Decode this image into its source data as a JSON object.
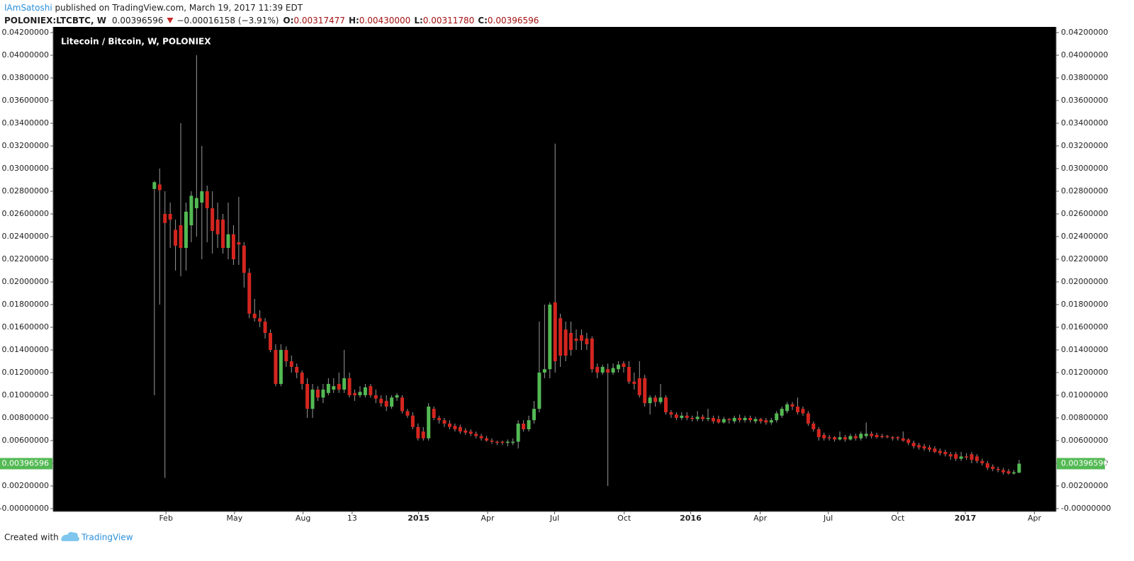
{
  "header": {
    "author": "IAmSatoshi",
    "published": " published on TradingView.com, March 19, 2017 11:39 EDT",
    "symbol": "POLONIEX:LTCBTC, W",
    "last": "0.00396596",
    "change": "−0.00016158 (−3.91%)",
    "open_label": "O:",
    "open": "0.00317477",
    "high_label": "H:",
    "high": "0.00430000",
    "low_label": "L:",
    "low": "0.00311780",
    "close_label": "C:",
    "close": "0.00396596"
  },
  "chart_data": {
    "type": "candlestick",
    "title": "Litecoin / Bitcoin, W, POLONIEX",
    "up_color": "#53b953",
    "down_color": "#d3261f",
    "wick_color": "#9a9a9a",
    "price_label": "0.00396596",
    "xlim": [
      -19.2,
      171.0
    ],
    "xticks": [
      {
        "value": 2.2,
        "label": "Feb"
      },
      {
        "value": 15.2,
        "label": "May"
      },
      {
        "value": 28.2,
        "label": "Aug"
      },
      {
        "value": 37.5,
        "label": "13"
      },
      {
        "value": 50.1,
        "label": "2015"
      },
      {
        "value": 63.2,
        "label": "Apr"
      },
      {
        "value": 75.9,
        "label": "Jul"
      },
      {
        "value": 89.1,
        "label": "Oct"
      },
      {
        "value": 101.7,
        "label": "2016"
      },
      {
        "value": 114.9,
        "label": "Apr"
      },
      {
        "value": 127.8,
        "label": "Jul"
      },
      {
        "value": 141.0,
        "label": "Oct"
      },
      {
        "value": 153.8,
        "label": "2017"
      },
      {
        "value": 166.9,
        "label": "Apr"
      }
    ],
    "ylim": [
      -0.000375,
      0.044375
    ],
    "yticks": [
      {
        "value": 0,
        "label": "-0.00000000"
      },
      {
        "value": 0.002,
        "label": "0.00200000"
      },
      {
        "value": 0.004,
        "label": "0.00400000"
      },
      {
        "value": 0.006,
        "label": "0.00600000"
      },
      {
        "value": 0.008,
        "label": "0.00800000"
      },
      {
        "value": 0.01,
        "label": "0.01000000"
      },
      {
        "value": 0.012,
        "label": "0.01200000"
      },
      {
        "value": 0.014,
        "label": "0.01400000"
      },
      {
        "value": 0.016,
        "label": "0.01600000"
      },
      {
        "value": 0.018,
        "label": "0.01800000"
      },
      {
        "value": 0.02,
        "label": "0.02000000"
      },
      {
        "value": 0.022,
        "label": "0.02200000"
      },
      {
        "value": 0.024,
        "label": "0.02400000"
      },
      {
        "value": 0.026,
        "label": "0.02600000"
      },
      {
        "value": 0.028,
        "label": "0.02800000"
      },
      {
        "value": 0.03,
        "label": "0.03000000"
      },
      {
        "value": 0.032,
        "label": "0.03200000"
      },
      {
        "value": 0.034,
        "label": "0.03400000"
      },
      {
        "value": 0.036,
        "label": "0.03600000"
      },
      {
        "value": 0.038,
        "label": "0.03800000"
      },
      {
        "value": 0.04,
        "label": "0.04000000"
      },
      {
        "value": 0.042,
        "label": "0.04200000"
      }
    ],
    "ohlc": [
      [
        0.0282,
        0.0289,
        0.01,
        0.0288
      ],
      [
        0.0286,
        0.03,
        0.018,
        0.0281
      ],
      [
        0.026,
        0.028,
        0.0027,
        0.0252
      ],
      [
        0.026,
        0.027,
        0.023,
        0.0255
      ],
      [
        0.0246,
        0.0255,
        0.021,
        0.0232
      ],
      [
        0.025,
        0.034,
        0.0205,
        0.023
      ],
      [
        0.023,
        0.027,
        0.021,
        0.0262
      ],
      [
        0.025,
        0.028,
        0.0235,
        0.0276
      ],
      [
        0.0265,
        0.04,
        0.024,
        0.0274
      ],
      [
        0.027,
        0.032,
        0.022,
        0.028
      ],
      [
        0.028,
        0.0285,
        0.0235,
        0.0265
      ],
      [
        0.0265,
        0.028,
        0.0225,
        0.0245
      ],
      [
        0.0255,
        0.027,
        0.023,
        0.0242
      ],
      [
        0.0255,
        0.026,
        0.0225,
        0.023
      ],
      [
        0.023,
        0.027,
        0.022,
        0.0242
      ],
      [
        0.0242,
        0.025,
        0.0215,
        0.022
      ],
      [
        0.0235,
        0.0275,
        0.0215,
        0.0233
      ],
      [
        0.0232,
        0.0235,
        0.0195,
        0.0208
      ],
      [
        0.0208,
        0.0212,
        0.0168,
        0.0172
      ],
      [
        0.0172,
        0.0185,
        0.0165,
        0.0168
      ],
      [
        0.0168,
        0.0175,
        0.016,
        0.0165
      ],
      [
        0.0165,
        0.0168,
        0.015,
        0.0155
      ],
      [
        0.0155,
        0.0158,
        0.0138,
        0.014
      ],
      [
        0.014,
        0.0145,
        0.0108,
        0.011
      ],
      [
        0.011,
        0.0145,
        0.0108,
        0.014
      ],
      [
        0.014,
        0.0143,
        0.0125,
        0.013
      ],
      [
        0.013,
        0.0135,
        0.012,
        0.0125
      ],
      [
        0.0125,
        0.0128,
        0.0115,
        0.012
      ],
      [
        0.012,
        0.0122,
        0.0105,
        0.011
      ],
      [
        0.011,
        0.0115,
        0.008,
        0.0088
      ],
      [
        0.0088,
        0.011,
        0.008,
        0.0105
      ],
      [
        0.0105,
        0.0108,
        0.0095,
        0.0098
      ],
      [
        0.0098,
        0.011,
        0.0093,
        0.0105
      ],
      [
        0.0102,
        0.0115,
        0.01,
        0.011
      ],
      [
        0.0105,
        0.0115,
        0.0102,
        0.0108
      ],
      [
        0.011,
        0.012,
        0.0102,
        0.0105
      ],
      [
        0.0105,
        0.014,
        0.0102,
        0.0115
      ],
      [
        0.0115,
        0.012,
        0.0098,
        0.01
      ],
      [
        0.0102,
        0.0105,
        0.0095,
        0.01
      ],
      [
        0.01,
        0.0108,
        0.0098,
        0.0103
      ],
      [
        0.01,
        0.011,
        0.0098,
        0.0107
      ],
      [
        0.0108,
        0.011,
        0.0098,
        0.01
      ],
      [
        0.01,
        0.0105,
        0.0093,
        0.0097
      ],
      [
        0.0097,
        0.01,
        0.009,
        0.0093
      ],
      [
        0.0095,
        0.01,
        0.0086,
        0.009
      ],
      [
        0.009,
        0.01,
        0.0088,
        0.0098
      ],
      [
        0.0098,
        0.0102,
        0.0095,
        0.01
      ],
      [
        0.0098,
        0.01,
        0.0084,
        0.0086
      ],
      [
        0.0086,
        0.0088,
        0.008,
        0.0082
      ],
      [
        0.0082,
        0.0085,
        0.007,
        0.0072
      ],
      [
        0.0072,
        0.0075,
        0.006,
        0.0062
      ],
      [
        0.0068,
        0.0072,
        0.006,
        0.0062
      ],
      [
        0.0062,
        0.0093,
        0.006,
        0.009
      ],
      [
        0.0088,
        0.009,
        0.0078,
        0.008
      ],
      [
        0.008,
        0.0082,
        0.0075,
        0.0078
      ],
      [
        0.0078,
        0.008,
        0.0072,
        0.0075
      ],
      [
        0.0075,
        0.0078,
        0.007,
        0.0072
      ],
      [
        0.0073,
        0.0075,
        0.0068,
        0.007
      ],
      [
        0.0072,
        0.0074,
        0.0066,
        0.0068
      ],
      [
        0.0069,
        0.0071,
        0.0065,
        0.0067
      ],
      [
        0.0068,
        0.007,
        0.0064,
        0.0066
      ],
      [
        0.0066,
        0.0068,
        0.0062,
        0.0064
      ],
      [
        0.0064,
        0.0066,
        0.006,
        0.0062
      ],
      [
        0.0062,
        0.0064,
        0.0059,
        0.006
      ],
      [
        0.006,
        0.0062,
        0.0057,
        0.0059
      ],
      [
        0.0059,
        0.006,
        0.0056,
        0.0058
      ],
      [
        0.0059,
        0.006,
        0.0056,
        0.0058
      ],
      [
        0.0058,
        0.0061,
        0.0055,
        0.0059
      ],
      [
        0.0058,
        0.0062,
        0.0056,
        0.0059
      ],
      [
        0.0059,
        0.0078,
        0.0053,
        0.0075
      ],
      [
        0.0075,
        0.0078,
        0.0068,
        0.007
      ],
      [
        0.007,
        0.0082,
        0.0068,
        0.0078
      ],
      [
        0.0078,
        0.0095,
        0.0075,
        0.0088
      ],
      [
        0.0088,
        0.0165,
        0.0085,
        0.012
      ],
      [
        0.012,
        0.018,
        0.0115,
        0.0123
      ],
      [
        0.0123,
        0.0182,
        0.0115,
        0.018
      ],
      [
        0.0182,
        0.0322,
        0.012,
        0.013
      ],
      [
        0.0168,
        0.0172,
        0.0125,
        0.0135
      ],
      [
        0.0158,
        0.0165,
        0.013,
        0.0135
      ],
      [
        0.0155,
        0.0165,
        0.0135,
        0.014
      ],
      [
        0.015,
        0.0158,
        0.014,
        0.0148
      ],
      [
        0.0153,
        0.0158,
        0.014,
        0.0148
      ],
      [
        0.015,
        0.0155,
        0.014,
        0.0145
      ],
      [
        0.015,
        0.0152,
        0.012,
        0.0123
      ],
      [
        0.0125,
        0.0128,
        0.0115,
        0.012
      ],
      [
        0.012,
        0.0127,
        0.0118,
        0.0125
      ],
      [
        0.0123,
        0.0128,
        0.002,
        0.012
      ],
      [
        0.012,
        0.0128,
        0.0118,
        0.0124
      ],
      [
        0.0123,
        0.013,
        0.012,
        0.0127
      ],
      [
        0.0128,
        0.013,
        0.012,
        0.0125
      ],
      [
        0.0125,
        0.013,
        0.011,
        0.0112
      ],
      [
        0.0112,
        0.012,
        0.0105,
        0.011
      ],
      [
        0.0115,
        0.013,
        0.0098,
        0.01
      ],
      [
        0.0115,
        0.0118,
        0.009,
        0.0093
      ],
      [
        0.0093,
        0.01,
        0.0083,
        0.0098
      ],
      [
        0.0098,
        0.01,
        0.009,
        0.0094
      ],
      [
        0.0094,
        0.011,
        0.0092,
        0.0098
      ],
      [
        0.0098,
        0.01,
        0.0083,
        0.0085
      ],
      [
        0.0085,
        0.0087,
        0.008,
        0.0083
      ],
      [
        0.0083,
        0.0085,
        0.0078,
        0.008
      ],
      [
        0.008,
        0.0085,
        0.0078,
        0.0082
      ],
      [
        0.0082,
        0.0085,
        0.0078,
        0.008
      ],
      [
        0.008,
        0.0082,
        0.0077,
        0.0079
      ],
      [
        0.0079,
        0.0086,
        0.0077,
        0.0081
      ],
      [
        0.0081,
        0.0083,
        0.0077,
        0.0079
      ],
      [
        0.0079,
        0.0088,
        0.0077,
        0.008
      ],
      [
        0.008,
        0.0082,
        0.0075,
        0.0077
      ],
      [
        0.0079,
        0.0082,
        0.0075,
        0.0076
      ],
      [
        0.0076,
        0.0081,
        0.0075,
        0.0079
      ],
      [
        0.0079,
        0.008,
        0.0075,
        0.0078
      ],
      [
        0.0077,
        0.0082,
        0.0075,
        0.008
      ],
      [
        0.008,
        0.0083,
        0.0076,
        0.0078
      ],
      [
        0.0078,
        0.0082,
        0.0076,
        0.008
      ],
      [
        0.008,
        0.0082,
        0.0076,
        0.0078
      ],
      [
        0.0077,
        0.0081,
        0.0075,
        0.0079
      ],
      [
        0.0079,
        0.008,
        0.0075,
        0.0077
      ],
      [
        0.0078,
        0.008,
        0.0074,
        0.0076
      ],
      [
        0.0076,
        0.008,
        0.0074,
        0.0078
      ],
      [
        0.0078,
        0.0086,
        0.0076,
        0.0084
      ],
      [
        0.0082,
        0.009,
        0.008,
        0.0088
      ],
      [
        0.0086,
        0.0094,
        0.0084,
        0.0092
      ],
      [
        0.0092,
        0.0094,
        0.0087,
        0.009
      ],
      [
        0.009,
        0.0098,
        0.0083,
        0.0085
      ],
      [
        0.0088,
        0.009,
        0.0082,
        0.0084
      ],
      [
        0.0084,
        0.0086,
        0.0073,
        0.0075
      ],
      [
        0.0075,
        0.0077,
        0.0068,
        0.007
      ],
      [
        0.007,
        0.0072,
        0.006,
        0.0063
      ],
      [
        0.0065,
        0.0067,
        0.006,
        0.0062
      ],
      [
        0.0063,
        0.0065,
        0.006,
        0.0062
      ],
      [
        0.0063,
        0.0064,
        0.0059,
        0.0061
      ],
      [
        0.0061,
        0.0068,
        0.006,
        0.0063
      ],
      [
        0.0063,
        0.0065,
        0.0059,
        0.0061
      ],
      [
        0.0061,
        0.0066,
        0.006,
        0.0064
      ],
      [
        0.0064,
        0.0066,
        0.006,
        0.0062
      ],
      [
        0.0062,
        0.0068,
        0.006,
        0.0066
      ],
      [
        0.0064,
        0.0076,
        0.0062,
        0.0066
      ],
      [
        0.0066,
        0.0068,
        0.0062,
        0.0064
      ],
      [
        0.0065,
        0.0067,
        0.0062,
        0.0063
      ],
      [
        0.0064,
        0.0066,
        0.0062,
        0.0063
      ],
      [
        0.0064,
        0.0065,
        0.0062,
        0.0063
      ],
      [
        0.0063,
        0.0064,
        0.006,
        0.0062
      ],
      [
        0.0063,
        0.0064,
        0.006,
        0.0062
      ],
      [
        0.0062,
        0.0068,
        0.0059,
        0.006
      ],
      [
        0.0061,
        0.0062,
        0.0056,
        0.0058
      ],
      [
        0.0058,
        0.006,
        0.0053,
        0.0055
      ],
      [
        0.0056,
        0.0058,
        0.0052,
        0.0054
      ],
      [
        0.0055,
        0.0057,
        0.0051,
        0.0053
      ],
      [
        0.0054,
        0.0056,
        0.005,
        0.0052
      ],
      [
        0.0053,
        0.0055,
        0.0049,
        0.005
      ],
      [
        0.0051,
        0.0053,
        0.0047,
        0.0049
      ],
      [
        0.005,
        0.0052,
        0.0046,
        0.0048
      ],
      [
        0.0048,
        0.005,
        0.0043,
        0.0046
      ],
      [
        0.0048,
        0.005,
        0.0042,
        0.0044
      ],
      [
        0.0044,
        0.005,
        0.0042,
        0.0046
      ],
      [
        0.0046,
        0.0049,
        0.0043,
        0.0045
      ],
      [
        0.0048,
        0.005,
        0.004,
        0.0043
      ],
      [
        0.0046,
        0.0048,
        0.004,
        0.0042
      ],
      [
        0.0042,
        0.0044,
        0.0038,
        0.004
      ],
      [
        0.004,
        0.0042,
        0.0034,
        0.0036
      ],
      [
        0.0037,
        0.0039,
        0.0033,
        0.0035
      ],
      [
        0.0035,
        0.0037,
        0.0032,
        0.0034
      ],
      [
        0.0034,
        0.0036,
        0.003,
        0.0032
      ],
      [
        0.0033,
        0.0035,
        0.003,
        0.0031
      ],
      [
        0.0031,
        0.0034,
        0.003,
        0.0032
      ],
      [
        0.00317477,
        0.0043,
        0.0031178,
        0.00396596
      ]
    ]
  },
  "footer": {
    "created": "Created with",
    "brand": "TradingView"
  }
}
